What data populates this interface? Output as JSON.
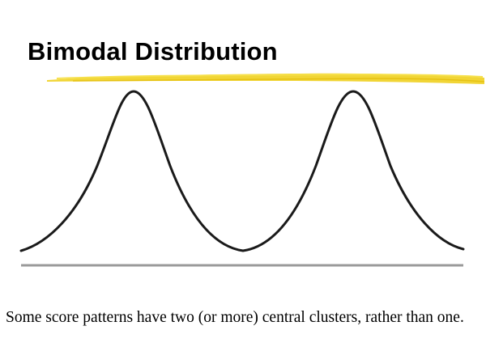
{
  "slide": {
    "title": "Bimodal Distribution",
    "caption": "Some score patterns have two (or more) central clusters, rather than one."
  },
  "colors": {
    "title_underline": "#f0d020",
    "curve": "#1a1a1a",
    "baseline": "#9a9a9a"
  },
  "icons": {
    "underline": "yellow-brush-stroke"
  }
}
